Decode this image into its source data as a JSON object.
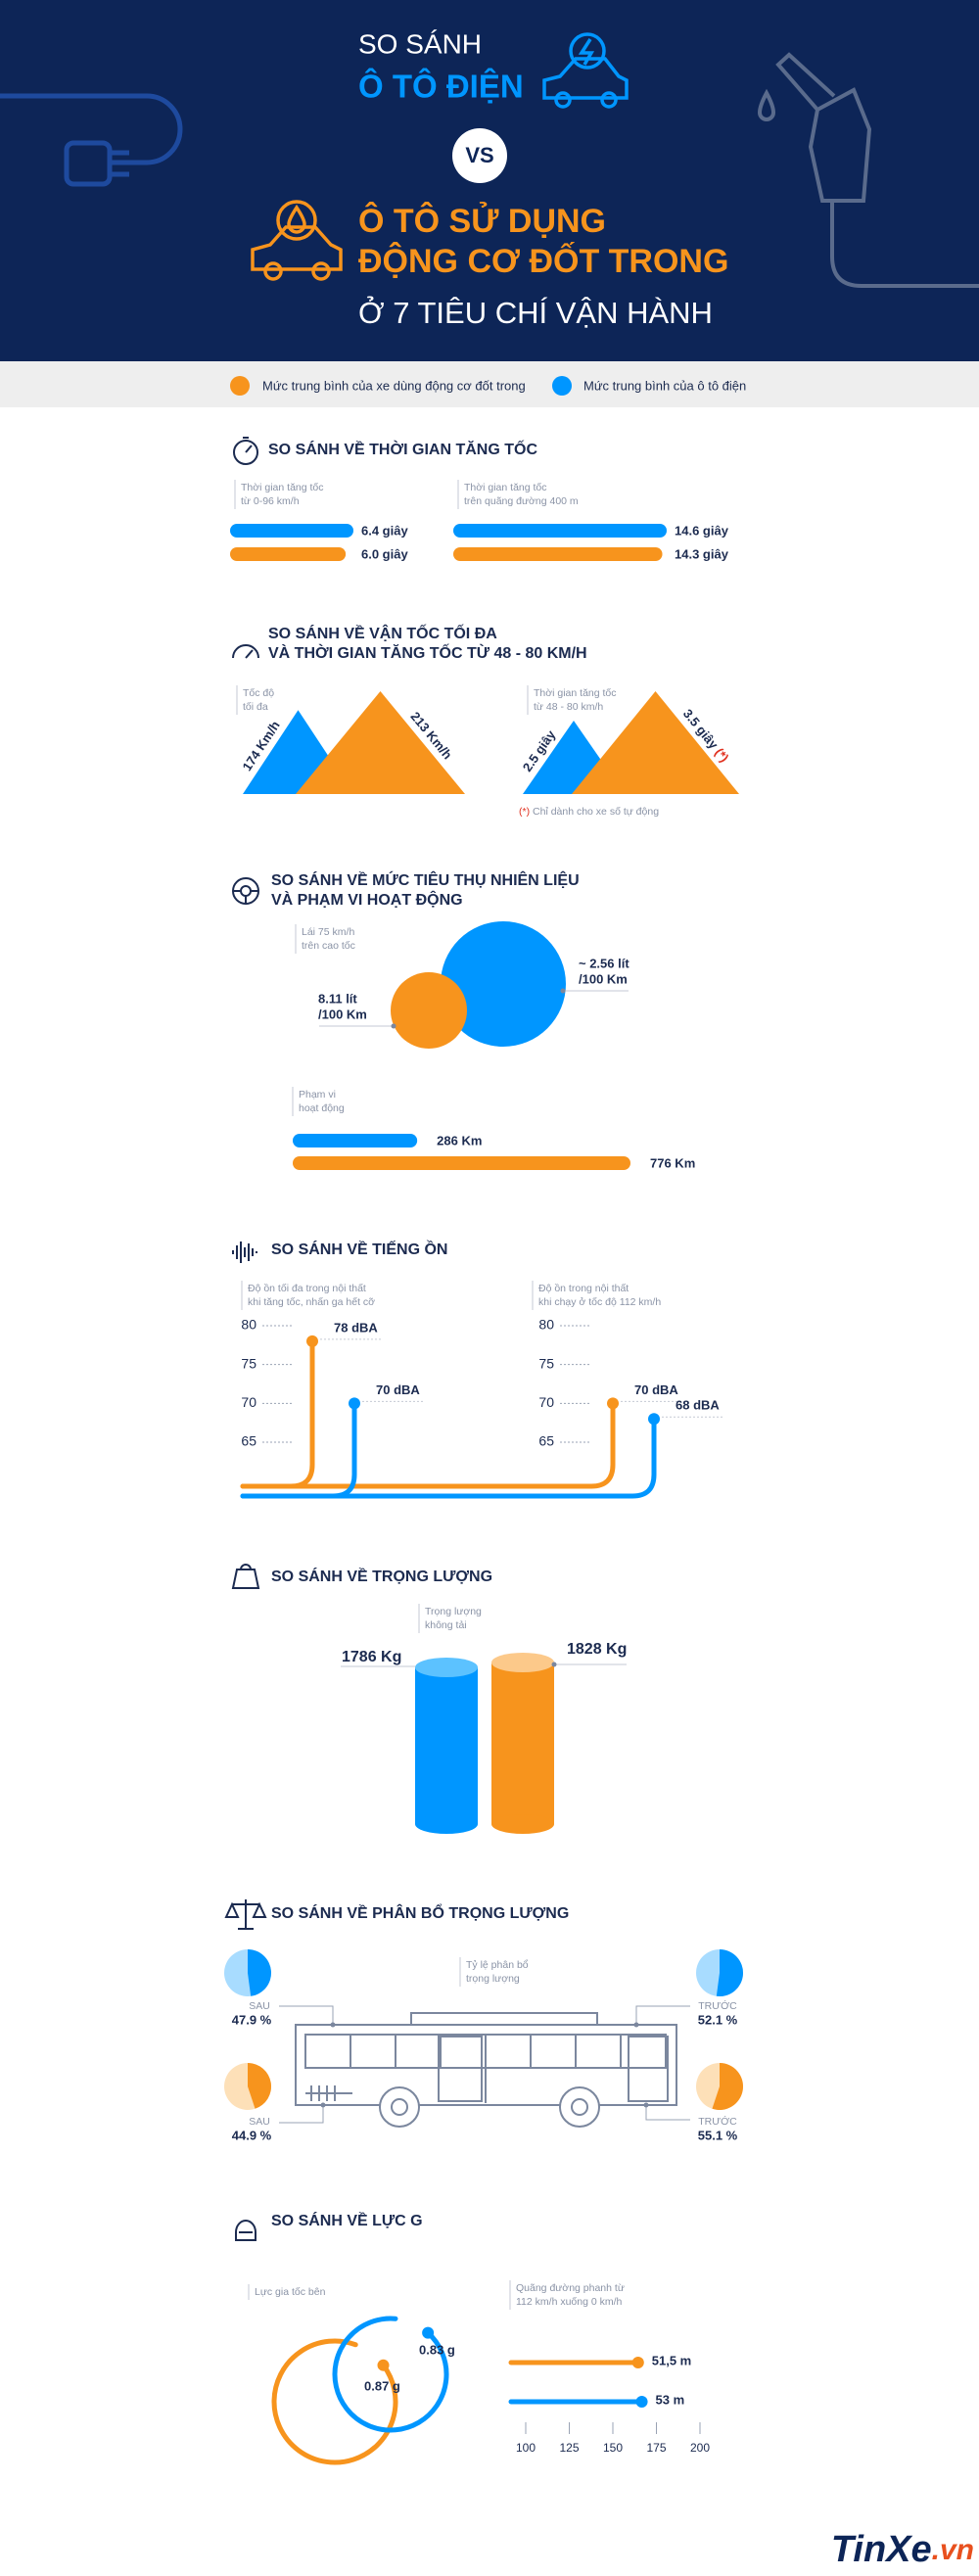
{
  "header": {
    "line1": "SO SÁNH",
    "line2": "Ô TÔ ĐIỆN",
    "vs": "VS",
    "line3": "Ô TÔ SỬ DỤNG",
    "line4": "ĐỘNG CƠ ĐỐT TRONG",
    "line5": "Ở 7 TIÊU CHÍ VẬN HÀNH"
  },
  "legend": [
    {
      "name": "Mức trung bình của xe dùng động cơ đốt trong",
      "color": "#f7941d"
    },
    {
      "name": "Mức trung bình của ô tô điện",
      "color": "#0096ff"
    }
  ],
  "acceleration": {
    "title": "SO SÁNH VỀ THỜI GIAN TĂNG TỐC",
    "groups": [
      {
        "caption": [
          "Thời gian tăng tốc",
          "từ 0-96 km/h"
        ],
        "electric": {
          "value": 6.4,
          "label": "6.4 giây"
        },
        "combustion": {
          "value": 6.0,
          "label": "6.0 giây"
        }
      },
      {
        "caption": [
          "Thời gian tăng tốc",
          "trên quãng đường 400 m"
        ],
        "electric": {
          "value": 14.6,
          "label": "14.6 giây"
        },
        "combustion": {
          "value": 14.3,
          "label": "14.3 giây"
        }
      }
    ]
  },
  "speed": {
    "title": [
      "SO SÁNH VỀ VẬN TỐC TỐI ĐA",
      "VÀ THỜI GIAN TĂNG TỐC TỪ 48 - 80 KM/H"
    ],
    "groups": [
      {
        "caption": [
          "Tốc độ",
          "tối đa"
        ],
        "electric": {
          "value": 174,
          "label": "174 Km/h"
        },
        "combustion": {
          "value": 213,
          "label": "213 Km/h"
        }
      },
      {
        "caption": [
          "Thời gian tăng tốc",
          "từ 48 - 80 km/h"
        ],
        "electric": {
          "value": 2.5,
          "label": "2.5 giây"
        },
        "combustion": {
          "value": 3.5,
          "label": "3.5 giây",
          "note_mark": "(*)"
        }
      }
    ],
    "footnote": {
      "mark": "(*)",
      "text": "Chỉ dành cho xe số tự động"
    }
  },
  "fuel": {
    "title": [
      "SO SÁNH VỀ MỨC TIÊU THỤ NHIÊN LIỆU",
      "VÀ PHẠM VI HOẠT ĐỘNG"
    ],
    "consumption": {
      "caption": [
        "Lái 75 km/h",
        "trên cao tốc"
      ],
      "combustion": [
        "8.11 lít",
        "/100 Km"
      ],
      "electric": [
        "~ 2.56 lít",
        "/100 Km"
      ]
    },
    "range": {
      "caption": [
        "Phạm vi",
        "hoạt động"
      ],
      "electric": {
        "value": 286,
        "label": "286 Km"
      },
      "combustion": {
        "value": 776,
        "label": "776 Km"
      }
    }
  },
  "noise": {
    "title": "SO SÁNH VỀ TIẾNG ỒN",
    "ticks": [
      80,
      75,
      70,
      65
    ],
    "groups": [
      {
        "caption": [
          "Độ ồn tối đa trong nội thất",
          "khi tăng tốc, nhấn ga hết cỡ"
        ],
        "combustion": {
          "value": 78,
          "label": "78 dBA"
        },
        "electric": {
          "value": 70,
          "label": "70 dBA"
        }
      },
      {
        "caption": [
          "Độ ồn trong nội thất",
          "khi chạy ở tốc độ 112 km/h"
        ],
        "combustion": {
          "value": 70,
          "label": "70 dBA"
        },
        "electric": {
          "value": 68,
          "label": "68 dBA"
        }
      }
    ]
  },
  "weight": {
    "title": "SO SÁNH VỀ TRỌNG LƯỢNG",
    "caption": [
      "Trọng lượng",
      "không tải"
    ],
    "electric": "1786 Kg",
    "combustion": "1828 Kg"
  },
  "distribution": {
    "title": "SO SÁNH VỀ PHÂN BỔ TRỌNG LƯỢNG",
    "caption": [
      "Tỷ lệ phân bổ",
      "trọng lượng"
    ],
    "electric": {
      "rear": {
        "name": "SAU",
        "value": 47.9,
        "label": "47.9 %"
      },
      "front": {
        "name": "TRƯỚC",
        "value": 52.1,
        "label": "52.1 %"
      }
    },
    "combustion": {
      "rear": {
        "name": "SAU",
        "value": 44.9,
        "label": "44.9 %"
      },
      "front": {
        "name": "TRƯỚC",
        "value": 55.1,
        "label": "55.1 %"
      }
    }
  },
  "gforce": {
    "title": "SO SÁNH VỀ LỰC G",
    "lateral": {
      "caption": "Lực gia tốc bên",
      "electric": "0.83 g",
      "combustion": "0.87 g"
    },
    "braking": {
      "caption": [
        "Quãng đường phanh từ",
        "112 km/h xuống 0 km/h"
      ],
      "combustion": {
        "value": 51.5,
        "label": "51,5 m"
      },
      "electric": {
        "value": 53,
        "label": "53 m"
      },
      "ticks": [
        100,
        125,
        150,
        175,
        200
      ]
    }
  },
  "logo": {
    "brand": "TinXe",
    "tld": ".vn"
  }
}
